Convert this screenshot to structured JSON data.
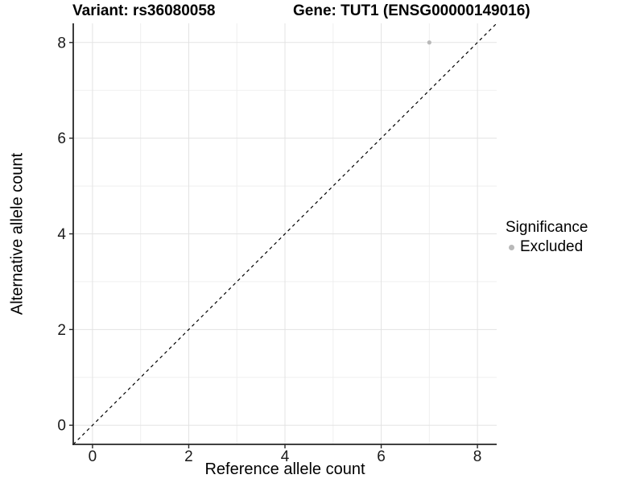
{
  "figure": {
    "title_left": "Variant: rs36080058",
    "title_right": "Gene: TUT1 (ENSG00000149016)"
  },
  "chart_data": {
    "type": "scatter",
    "xlabel": "Reference allele count",
    "ylabel": "Alternative allele count",
    "xlim": [
      0,
      8
    ],
    "ylim": [
      0,
      8
    ],
    "expand_units": 0.4,
    "xticks": [
      0,
      2,
      4,
      6,
      8
    ],
    "yticks": [
      0,
      2,
      4,
      6,
      8
    ],
    "minor_gridlines": [
      1,
      3,
      5,
      7
    ],
    "grid": "on",
    "points": [
      {
        "x": 7,
        "y": 8,
        "series": "Excluded"
      }
    ],
    "reference_line": {
      "slope": 1,
      "intercept": 0,
      "style": "dashed",
      "color": "#000000"
    },
    "legend": {
      "title": "Significance",
      "position": "right",
      "items": [
        {
          "label": "Excluded",
          "color": "#b9b9b9"
        }
      ]
    },
    "colors": {
      "grid_major": "#e3e3e3",
      "grid_minor": "#efefef",
      "axis_line": "#262626",
      "tick_label": "#1a1a1a"
    }
  }
}
